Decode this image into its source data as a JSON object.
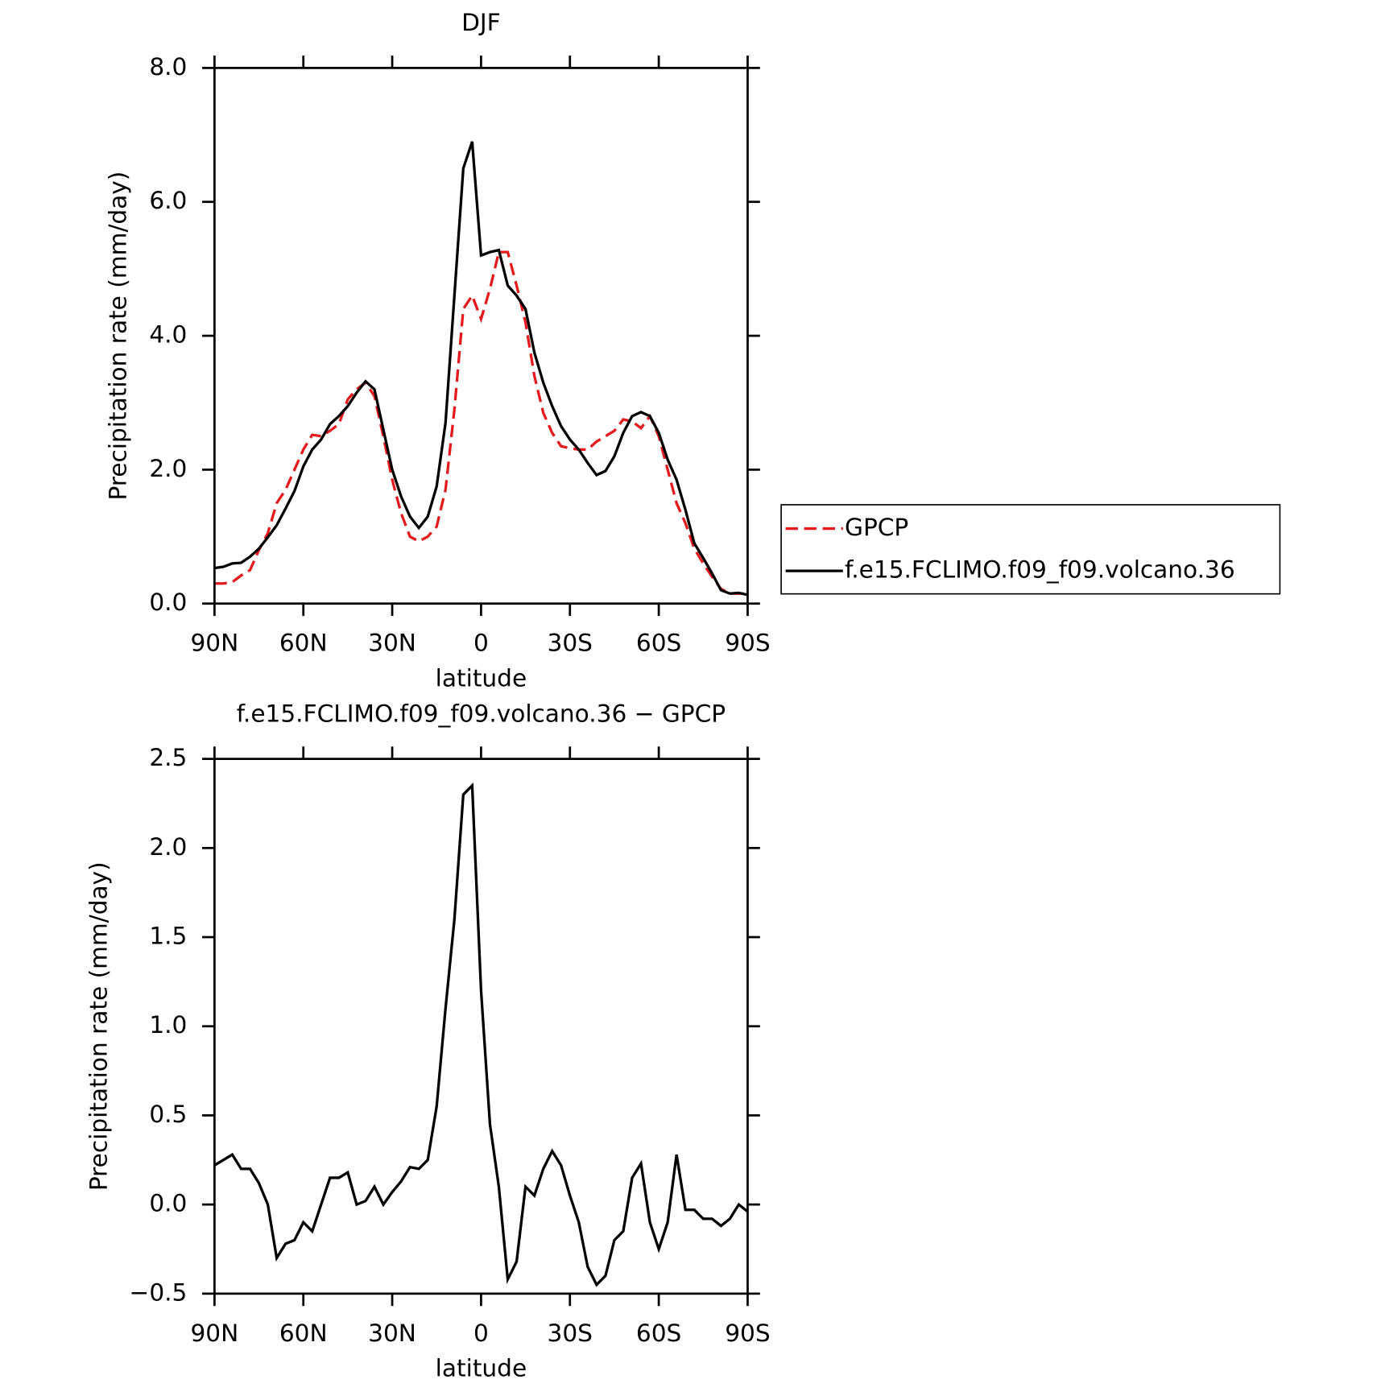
{
  "chart_data": [
    {
      "type": "line",
      "title": "DJF",
      "xlabel": "latitude",
      "ylabel": "Precipitation rate (mm/day)",
      "x": [
        90,
        87,
        84,
        81,
        78,
        75,
        72,
        69,
        66,
        63,
        60,
        57,
        54,
        51,
        48,
        45,
        42,
        39,
        36,
        33,
        30,
        27,
        24,
        21,
        18,
        15,
        12,
        9,
        6,
        3,
        0,
        -3,
        -6,
        -9,
        -12,
        -15,
        -18,
        -21,
        -24,
        -27,
        -30,
        -33,
        -36,
        -39,
        -42,
        -45,
        -48,
        -51,
        -54,
        -57,
        -60,
        -63,
        -66,
        -69,
        -72,
        -75,
        -78,
        -81,
        -84,
        -87,
        -90
      ],
      "series": [
        {
          "name": "GPCP",
          "color": "#e41a1c",
          "style": "dashed",
          "values": [
            0.3,
            0.3,
            0.32,
            0.42,
            0.5,
            0.8,
            1.05,
            1.5,
            1.7,
            2.0,
            2.3,
            2.52,
            2.5,
            2.58,
            2.68,
            3.05,
            3.2,
            3.3,
            3.1,
            2.5,
            1.85,
            1.35,
            1.0,
            0.93,
            1.0,
            1.15,
            1.7,
            2.9,
            4.4,
            4.6,
            4.25,
            4.7,
            5.25,
            5.25,
            4.75,
            4.2,
            3.4,
            2.85,
            2.55,
            2.35,
            2.32,
            2.3,
            2.3,
            2.42,
            2.5,
            2.58,
            2.75,
            2.72,
            2.62,
            2.8,
            2.5,
            2.0,
            1.5,
            1.2,
            0.82,
            0.6,
            0.4,
            0.22,
            0.15,
            0.15,
            0.15
          ]
        },
        {
          "name": "f.e15.FCLIMO.f09_f09.volcano.36",
          "color": "#000000",
          "style": "solid",
          "values": [
            0.53,
            0.55,
            0.6,
            0.61,
            0.7,
            0.82,
            0.99,
            1.17,
            1.42,
            1.68,
            2.05,
            2.3,
            2.45,
            2.68,
            2.8,
            2.95,
            3.15,
            3.32,
            3.2,
            2.6,
            2.0,
            1.6,
            1.3,
            1.13,
            1.3,
            1.75,
            2.7,
            4.6,
            6.5,
            6.9,
            5.2,
            5.25,
            5.28,
            4.75,
            4.6,
            4.4,
            3.75,
            3.3,
            2.95,
            2.65,
            2.45,
            2.3,
            2.1,
            1.92,
            1.98,
            2.2,
            2.55,
            2.8,
            2.86,
            2.8,
            2.55,
            2.15,
            1.85,
            1.4,
            0.9,
            0.68,
            0.45,
            0.2,
            0.15,
            0.16,
            0.13
          ]
        }
      ],
      "xlim": [
        90,
        -90
      ],
      "xticks": [
        {
          "value": 90,
          "label": "90N"
        },
        {
          "value": 60,
          "label": "60N"
        },
        {
          "value": 30,
          "label": "30N"
        },
        0,
        {
          "value": -30,
          "label": "30S"
        },
        {
          "value": -60,
          "label": "60S"
        },
        {
          "value": -90,
          "label": "90S"
        }
      ],
      "ylim": [
        0,
        8
      ],
      "yticks": [
        {
          "value": 0,
          "label": "0.0"
        },
        {
          "value": 2,
          "label": "2.0"
        },
        {
          "value": 4,
          "label": "4.0"
        },
        {
          "value": 6,
          "label": "6.0"
        },
        {
          "value": 8,
          "label": "8.0"
        }
      ],
      "legend": "right"
    },
    {
      "type": "line",
      "title": "f.e15.FCLIMO.f09_f09.volcano.36 − GPCP",
      "xlabel": "latitude",
      "ylabel": "Precipitation rate (mm/day)",
      "x": [
        90,
        87,
        84,
        81,
        78,
        75,
        72,
        69,
        66,
        63,
        60,
        57,
        54,
        51,
        48,
        45,
        42,
        39,
        36,
        33,
        30,
        27,
        24,
        21,
        18,
        15,
        12,
        9,
        6,
        3,
        0,
        -3,
        -6,
        -9,
        -12,
        -15,
        -18,
        -21,
        -24,
        -27,
        -30,
        -33,
        -36,
        -39,
        -42,
        -45,
        -48,
        -51,
        -54,
        -57,
        -60,
        -63,
        -66,
        -69,
        -72,
        -75,
        -78,
        -81,
        -84,
        -87,
        -90
      ],
      "series": [
        {
          "color": "#000000",
          "style": "solid",
          "values": [
            0.22,
            0.25,
            0.28,
            0.2,
            0.2,
            0.12,
            0.0,
            -0.3,
            -0.22,
            -0.2,
            -0.1,
            -0.15,
            0.0,
            0.15,
            0.15,
            0.18,
            0.0,
            0.02,
            0.1,
            0.0,
            0.07,
            0.13,
            0.21,
            0.2,
            0.25,
            0.55,
            1.1,
            1.6,
            2.3,
            2.35,
            1.2,
            0.45,
            0.1,
            -0.42,
            -0.32,
            0.1,
            0.05,
            0.2,
            0.3,
            0.22,
            0.05,
            -0.1,
            -0.35,
            -0.45,
            -0.4,
            -0.2,
            -0.15,
            0.15,
            0.23,
            -0.1,
            -0.25,
            -0.1,
            0.28,
            -0.03,
            -0.03,
            -0.08,
            -0.08,
            -0.12,
            -0.08,
            0.0,
            -0.04
          ]
        }
      ],
      "xlim": [
        90,
        -90
      ],
      "xticks": [
        {
          "value": 90,
          "label": "90N"
        },
        {
          "value": 60,
          "label": "60N"
        },
        {
          "value": 30,
          "label": "30N"
        },
        0,
        {
          "value": -30,
          "label": "30S"
        },
        {
          "value": -60,
          "label": "60S"
        },
        {
          "value": -90,
          "label": "90S"
        }
      ],
      "ylim": [
        -0.5,
        2.5
      ],
      "yticks": [
        {
          "value": -0.5,
          "label": "−0.5"
        },
        {
          "value": 0,
          "label": "0.0"
        },
        0.5,
        {
          "value": 1,
          "label": "1.0"
        },
        1.5,
        {
          "value": 2,
          "label": "2.0"
        },
        2.5
      ]
    }
  ]
}
